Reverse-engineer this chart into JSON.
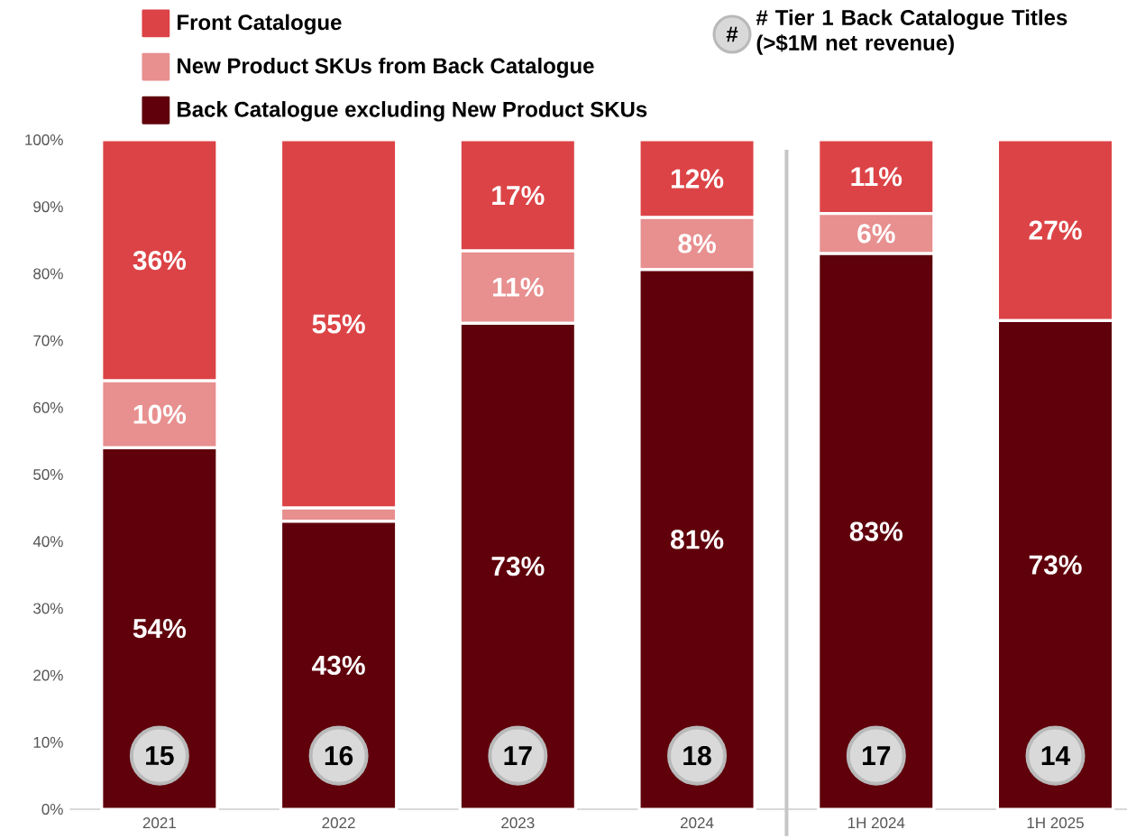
{
  "chart_data": {
    "type": "bar",
    "stacked": true,
    "legend": "top left",
    "categories": [
      "2021",
      "2022",
      "2023",
      "2024",
      "1H 2024",
      "1H 2025"
    ],
    "series": [
      {
        "name": "Back Catalogue excluding New Product SKUs",
        "color": "#5f000b",
        "values": [
          54,
          43,
          72.6,
          80.6,
          83,
          73
        ],
        "value_labels": [
          "54%",
          "43%",
          "73%",
          "81%",
          "83%",
          "73%"
        ]
      },
      {
        "name": "New Product SKUs from Back Catalogue",
        "color": "#e88f8f",
        "values": [
          10,
          2,
          10.8,
          7.8,
          6,
          null
        ],
        "value_labels": [
          "10%",
          null,
          "11%",
          "8%",
          "6%",
          null
        ]
      },
      {
        "name": "Front Catalogue",
        "color": "#dc4346",
        "values": [
          36,
          55,
          16.6,
          11.6,
          11,
          27
        ],
        "value_labels": [
          "36%",
          "55%",
          "17%",
          "12%",
          "11%",
          "27%"
        ]
      }
    ],
    "ylim": [
      0,
      100
    ],
    "yticks": [
      {
        "value": 0,
        "label": "0%"
      },
      {
        "value": 10,
        "label": "10%"
      },
      {
        "value": 20,
        "label": "20%"
      },
      {
        "value": 30,
        "label": "30%"
      },
      {
        "value": 40,
        "label": "40%"
      },
      {
        "value": 50,
        "label": "50%"
      },
      {
        "value": 60,
        "label": "60%"
      },
      {
        "value": 70,
        "label": "70%"
      },
      {
        "value": 80,
        "label": "80%"
      },
      {
        "value": 90,
        "label": "90%"
      },
      {
        "value": 100,
        "label": "100%"
      }
    ],
    "annotations": [
      "#",
      "# Tier 1 Back Catalogue Titles (>$1M net revenue)",
      "15",
      "16",
      "17",
      "18",
      "17",
      "14"
    ]
  }
}
